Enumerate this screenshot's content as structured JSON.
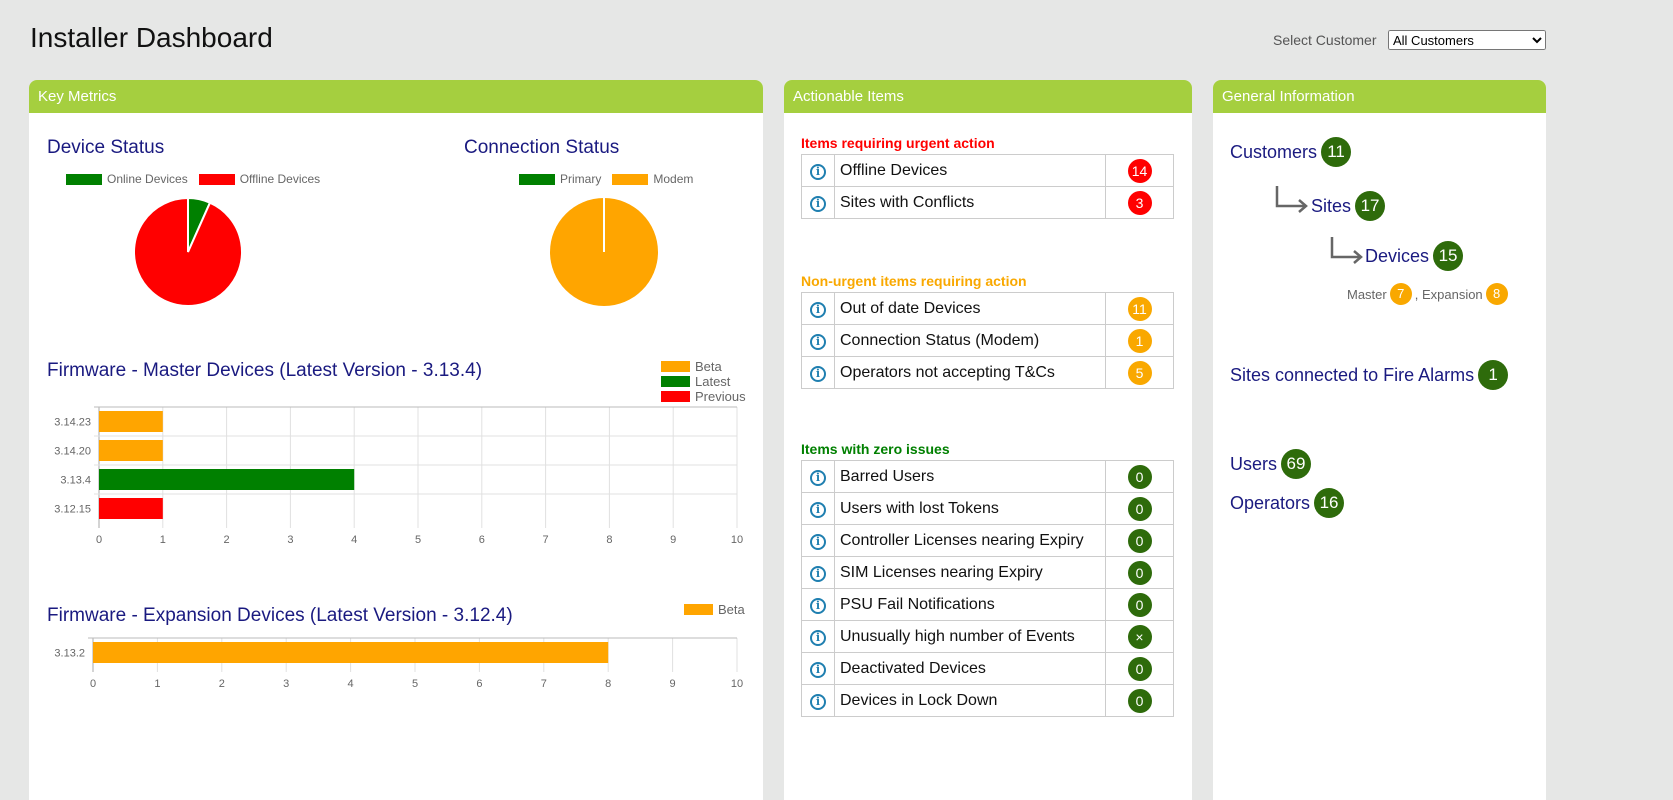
{
  "page": {
    "title": "Installer Dashboard",
    "select_label": "Select Customer",
    "select_value": "All Customers"
  },
  "key_metrics": {
    "header": "Key Metrics",
    "device_status": {
      "title": "Device Status",
      "legend": [
        "Online Devices",
        "Offline Devices"
      ],
      "values": [
        1,
        14
      ],
      "colors": [
        "#008000",
        "#ff0000"
      ]
    },
    "connection_status": {
      "title": "Connection Status",
      "legend": [
        "Primary",
        "Modem"
      ],
      "values": [
        0,
        1
      ],
      "colors": [
        "#008000",
        "#ffa500"
      ]
    }
  },
  "chart_data": [
    {
      "type": "bar",
      "orientation": "horizontal",
      "title": "Firmware - Master Devices (Latest Version - 3.13.4)",
      "categories": [
        "3.14.23",
        "3.14.20",
        "3.13.4",
        "3.12.15"
      ],
      "values": [
        1,
        1,
        4,
        1
      ],
      "bar_colors": [
        "#ffa500",
        "#ffa500",
        "#008000",
        "#ff0000"
      ],
      "legend": [
        {
          "name": "Beta",
          "color": "#ffa500"
        },
        {
          "name": "Latest",
          "color": "#008000"
        },
        {
          "name": "Previous",
          "color": "#ff0000"
        }
      ],
      "xlim": [
        0,
        10
      ],
      "xticks": [
        "0",
        "1",
        "2",
        "3",
        "4",
        "5",
        "6",
        "7",
        "8",
        "9",
        "10"
      ],
      "grid": true,
      "legend_position": "top-right"
    },
    {
      "type": "bar",
      "orientation": "horizontal",
      "title": "Firmware - Expansion Devices (Latest Version - 3.12.4)",
      "categories": [
        "3.13.2"
      ],
      "values": [
        8
      ],
      "bar_colors": [
        "#ffa500"
      ],
      "legend": [
        {
          "name": "Beta",
          "color": "#ffa500"
        }
      ],
      "xlim": [
        0,
        10
      ],
      "xticks": [
        "0",
        "1",
        "2",
        "3",
        "4",
        "5",
        "6",
        "7",
        "8",
        "9",
        "10"
      ],
      "grid": true,
      "legend_position": "top-right"
    }
  ],
  "actionable": {
    "header": "Actionable Items",
    "urgent": {
      "title": "Items requiring urgent action",
      "color": "#ff0000",
      "items": [
        {
          "label": "Offline Devices",
          "count": "14"
        },
        {
          "label": "Sites with Conflicts",
          "count": "3"
        }
      ]
    },
    "nonurgent": {
      "title": "Non-urgent items requiring action",
      "color": "#f9a800",
      "items": [
        {
          "label": "Out of date Devices",
          "count": "11"
        },
        {
          "label": "Connection Status (Modem)",
          "count": "1"
        },
        {
          "label": "Operators not accepting T&Cs",
          "count": "5"
        }
      ]
    },
    "zero": {
      "title": "Items with zero issues",
      "color": "#008000",
      "items": [
        {
          "label": "Barred Users",
          "count": "0"
        },
        {
          "label": "Users with lost Tokens",
          "count": "0"
        },
        {
          "label": "Controller Licenses nearing Expiry",
          "count": "0"
        },
        {
          "label": "SIM Licenses nearing Expiry",
          "count": "0"
        },
        {
          "label": "PSU Fail Notifications",
          "count": "0"
        },
        {
          "label": "Unusually high number of Events",
          "count": "×"
        },
        {
          "label": "Deactivated Devices",
          "count": "0"
        },
        {
          "label": "Devices in Lock Down",
          "count": "0"
        }
      ]
    }
  },
  "general": {
    "header": "General Information",
    "customers": {
      "label": "Customers",
      "count": "11"
    },
    "sites": {
      "label": "Sites",
      "count": "17"
    },
    "devices": {
      "label": "Devices",
      "count": "15"
    },
    "master": {
      "label": "Master",
      "count": "7"
    },
    "expansion": {
      "label": ", Expansion",
      "count": "8"
    },
    "fire": {
      "label": "Sites connected to Fire Alarms",
      "count": "1"
    },
    "users": {
      "label": "Users",
      "count": "69"
    },
    "operators": {
      "label": "Operators",
      "count": "16"
    }
  }
}
